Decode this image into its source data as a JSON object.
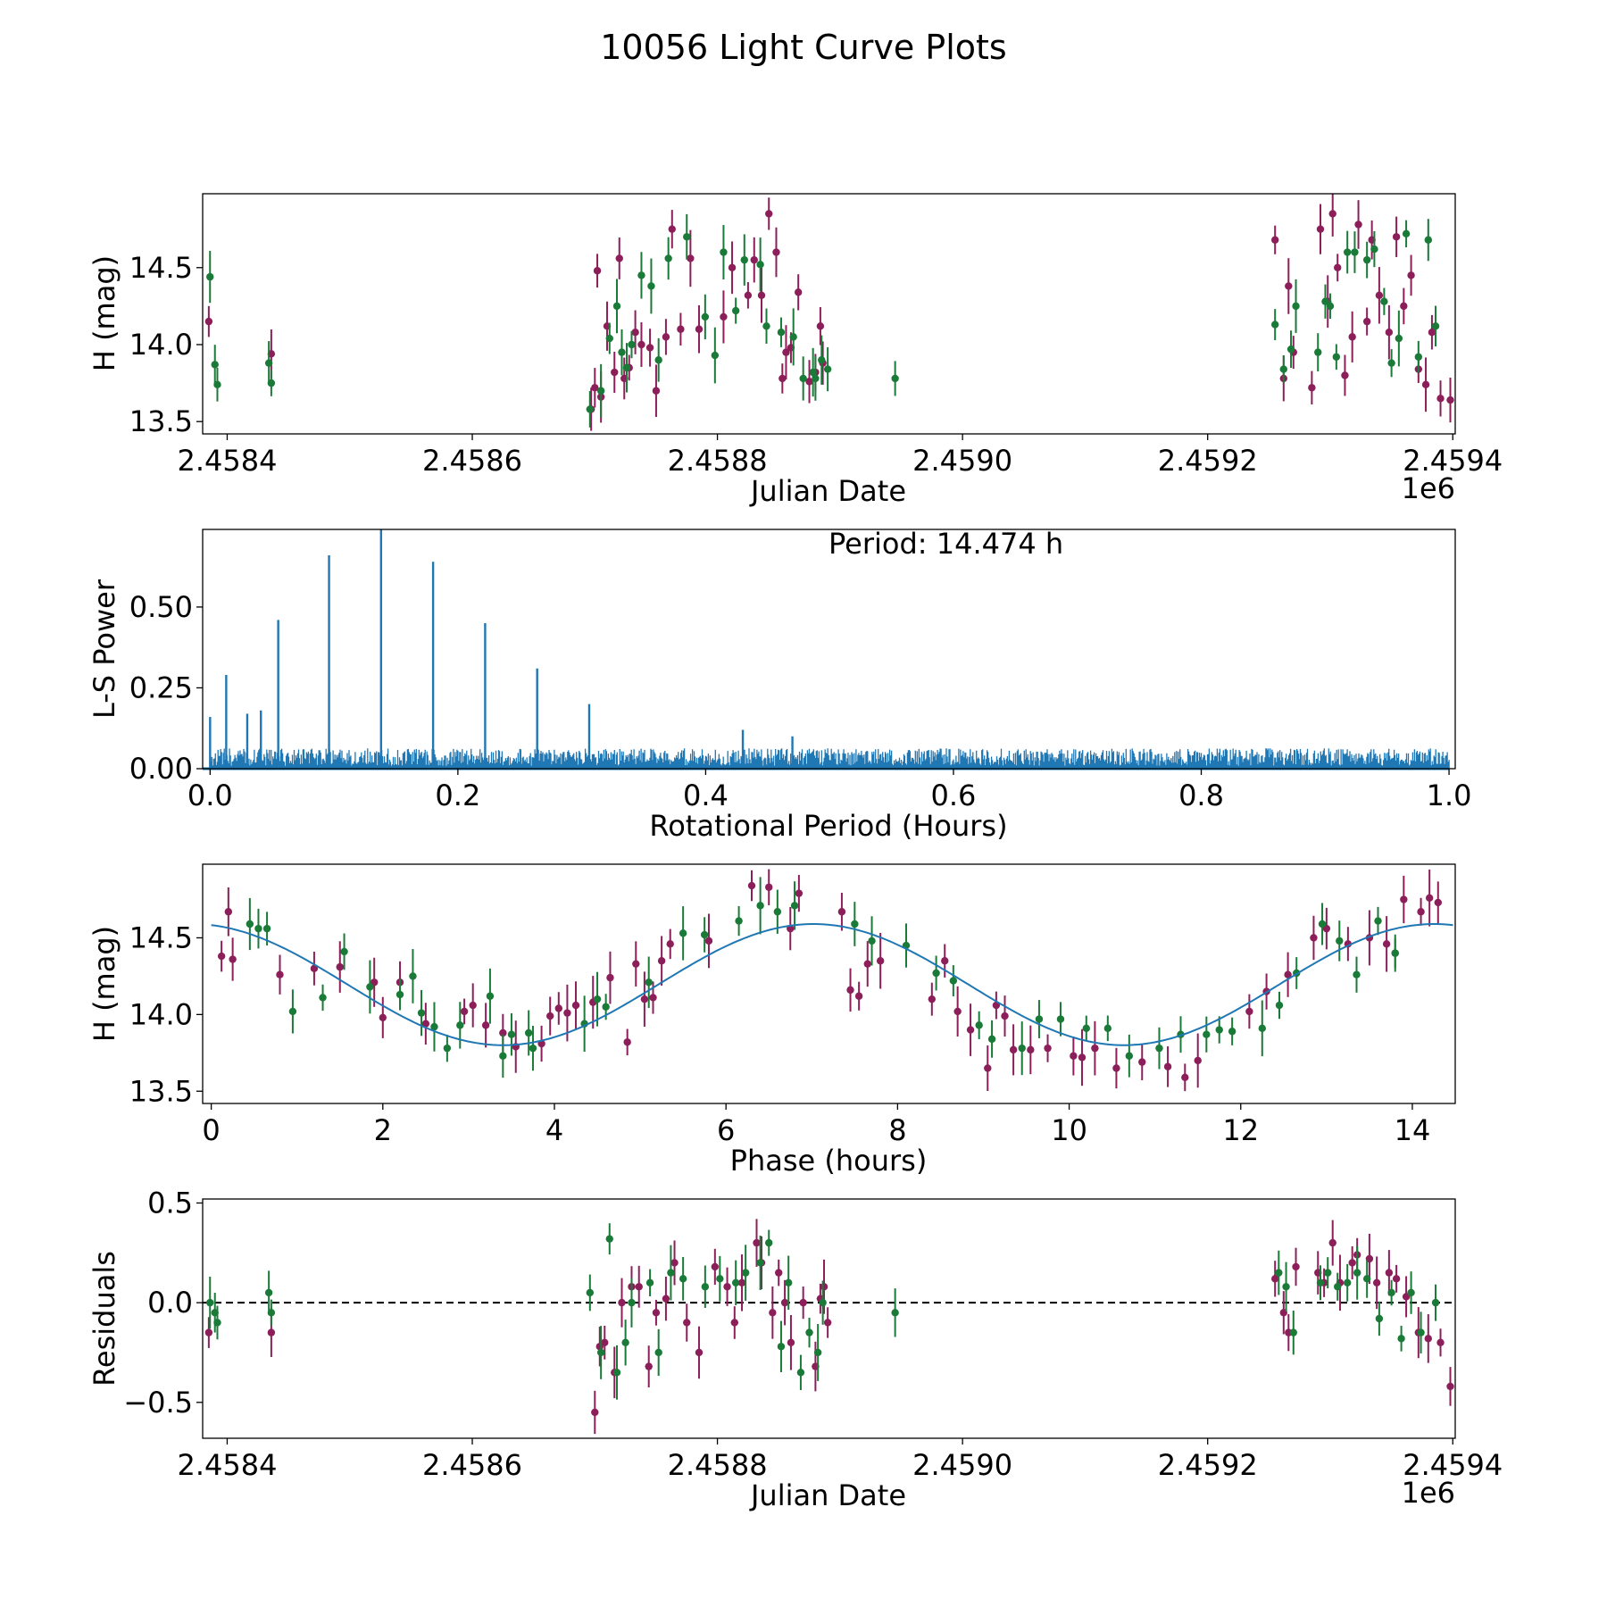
{
  "figure": {
    "title": "10056 Light Curve Plots",
    "colors": {
      "series_a": "#8c1f5a",
      "series_b": "#1a7a37",
      "line": "#1f77b4",
      "zero": "#000000"
    }
  },
  "chart_data": [
    {
      "type": "scatter",
      "title": "",
      "xlabel": "Julian Date",
      "ylabel": "H (mag)",
      "xlim": [
        2458380,
        2459402
      ],
      "ylim": [
        13.42,
        14.98
      ],
      "x_ticks": [
        2458400,
        2458600,
        2458800,
        2459000,
        2459200,
        2459400
      ],
      "x_tick_labels": [
        "2.4584",
        "2.4586",
        "2.4588",
        "2.4590",
        "2.4592",
        "2.4594"
      ],
      "x_offset_label": "1e6",
      "y_ticks": [
        13.5,
        14.0,
        14.5
      ],
      "y_tick_labels": [
        "13.5",
        "14.0",
        "14.5"
      ],
      "series": [
        {
          "name": "magenta",
          "x": [
            2458385,
            2458436,
            2458697,
            2458700,
            2458702,
            2458705,
            2458710,
            2458716,
            2458720,
            2458724,
            2458728,
            2458733,
            2458738,
            2458745,
            2458750,
            2458758,
            2458763,
            2458770,
            2458778,
            2458785,
            2458805,
            2458812,
            2458825,
            2458830,
            2458836,
            2458842,
            2458848,
            2458853,
            2458856,
            2458860,
            2458866,
            2458875,
            2458880,
            2458884,
            2458886,
            2459255,
            2459262,
            2459266,
            2459270,
            2459285,
            2459292,
            2459298,
            2459302,
            2459306,
            2459312,
            2459318,
            2459323,
            2459330,
            2459334,
            2459340,
            2459348,
            2459354,
            2459360,
            2459366,
            2459372,
            2459378,
            2459383,
            2459390,
            2459398
          ],
          "y": [
            14.15,
            13.94,
            13.58,
            13.72,
            14.48,
            13.66,
            14.12,
            13.82,
            14.56,
            13.78,
            13.85,
            14.08,
            14.0,
            13.98,
            13.7,
            14.05,
            14.75,
            14.1,
            14.56,
            14.1,
            14.18,
            14.5,
            14.32,
            14.55,
            14.32,
            14.85,
            14.6,
            13.78,
            13.95,
            13.98,
            14.34,
            13.76,
            13.82,
            14.12,
            13.88,
            14.68,
            13.78,
            14.38,
            13.95,
            13.72,
            14.75,
            14.28,
            14.85,
            14.5,
            13.8,
            14.05,
            14.78,
            14.15,
            14.68,
            14.32,
            14.08,
            14.7,
            14.25,
            14.45,
            13.84,
            13.74,
            14.08,
            13.65,
            13.64
          ]
        },
        {
          "name": "green",
          "x": [
            2458386,
            2458390,
            2458392,
            2458434,
            2458436,
            2458696,
            2458705,
            2458712,
            2458718,
            2458722,
            2458726,
            2458730,
            2458738,
            2458746,
            2458752,
            2458760,
            2458775,
            2458790,
            2458798,
            2458805,
            2458815,
            2458822,
            2458835,
            2458840,
            2458852,
            2458862,
            2458870,
            2458878,
            2458880,
            2458885,
            2458890,
            2458945,
            2459255,
            2459262,
            2459268,
            2459272,
            2459290,
            2459296,
            2459300,
            2459305,
            2459314,
            2459320,
            2459330,
            2459336,
            2459344,
            2459350,
            2459356,
            2459362,
            2459372,
            2459380,
            2459386
          ],
          "y": [
            14.44,
            13.87,
            13.74,
            13.88,
            13.75,
            13.58,
            13.7,
            14.04,
            14.25,
            13.95,
            13.85,
            14.0,
            14.45,
            14.38,
            13.9,
            14.56,
            14.7,
            14.18,
            13.93,
            14.6,
            14.22,
            14.55,
            14.52,
            14.12,
            14.08,
            14.05,
            13.78,
            13.82,
            13.78,
            13.9,
            13.84,
            13.78,
            14.13,
            13.84,
            13.97,
            14.25,
            13.95,
            14.28,
            14.25,
            13.92,
            14.6,
            14.6,
            14.55,
            14.62,
            14.28,
            13.88,
            14.04,
            14.72,
            13.92,
            14.68,
            14.12
          ]
        }
      ]
    },
    {
      "type": "line",
      "title": "",
      "xlabel": "Rotational Period (Hours)",
      "ylabel": "L-S Power",
      "xlim": [
        -0.006,
        1.005
      ],
      "ylim": [
        0,
        0.74
      ],
      "x_ticks": [
        0.0,
        0.2,
        0.4,
        0.6,
        0.8,
        1.0
      ],
      "x_tick_labels": [
        "0.0",
        "0.2",
        "0.4",
        "0.6",
        "0.8",
        "1.0"
      ],
      "y_ticks": [
        0.0,
        0.25,
        0.5
      ],
      "y_tick_labels": [
        "0.00",
        "0.25",
        "0.50"
      ],
      "annotation": "Period: 14.474 h",
      "peaks": {
        "x": [
          0.0,
          0.013,
          0.03,
          0.041,
          0.055,
          0.096,
          0.138,
          0.18,
          0.222,
          0.264,
          0.306,
          0.43,
          0.47
        ],
        "y": [
          0.16,
          0.29,
          0.17,
          0.18,
          0.46,
          0.66,
          0.74,
          0.64,
          0.45,
          0.31,
          0.2,
          0.12,
          0.1
        ]
      },
      "noise_level": 0.06
    },
    {
      "type": "scatter",
      "title": "",
      "xlabel": "Phase (hours)",
      "ylabel": "H (mag)",
      "xlim": [
        -0.1,
        14.5
      ],
      "ylim": [
        13.42,
        14.98
      ],
      "x_ticks": [
        0,
        2,
        4,
        6,
        8,
        10,
        12,
        14
      ],
      "x_tick_labels": [
        "0",
        "2",
        "4",
        "6",
        "8",
        "10",
        "12",
        "14"
      ],
      "y_ticks": [
        13.5,
        14.0,
        14.5
      ],
      "y_tick_labels": [
        "13.5",
        "14.0",
        "14.5"
      ],
      "model": {
        "name": "sinusoid fit",
        "mean": 14.195,
        "amplitude": 0.395,
        "period_hours": 7.237,
        "min_phase": 3.4
      },
      "series": [
        {
          "name": "magenta",
          "x": [
            0.12,
            0.2,
            0.25,
            0.8,
            1.2,
            1.5,
            1.9,
            2.0,
            2.2,
            2.5,
            2.95,
            3.05,
            3.2,
            3.4,
            3.55,
            3.85,
            3.95,
            4.05,
            4.15,
            4.25,
            4.45,
            4.65,
            4.85,
            4.95,
            5.05,
            5.15,
            5.25,
            5.35,
            5.8,
            6.3,
            6.5,
            6.75,
            6.85,
            7.35,
            7.45,
            7.55,
            7.65,
            7.8,
            8.4,
            8.55,
            8.7,
            8.85,
            9.05,
            9.15,
            9.25,
            9.35,
            9.55,
            9.75,
            10.05,
            10.15,
            10.3,
            10.55,
            10.85,
            11.15,
            11.35,
            11.5,
            12.1,
            12.3,
            12.55,
            12.85,
            13.0,
            13.25,
            13.5,
            13.7,
            13.8,
            13.9,
            14.1,
            14.2,
            14.3
          ],
          "y": [
            14.38,
            14.67,
            14.36,
            14.26,
            14.3,
            14.31,
            14.21,
            13.98,
            14.21,
            13.94,
            14.02,
            14.06,
            13.93,
            13.88,
            13.79,
            13.81,
            13.99,
            14.04,
            14.01,
            14.06,
            14.08,
            14.24,
            13.82,
            14.33,
            14.1,
            14.11,
            14.35,
            14.46,
            14.48,
            14.84,
            14.83,
            14.56,
            14.79,
            14.67,
            14.16,
            14.12,
            14.33,
            14.35,
            14.1,
            14.35,
            14.02,
            13.9,
            13.65,
            14.06,
            13.99,
            13.77,
            13.77,
            13.78,
            13.73,
            13.72,
            13.78,
            13.65,
            13.69,
            13.66,
            13.59,
            13.7,
            14.02,
            14.15,
            14.26,
            14.5,
            14.56,
            14.46,
            14.5,
            14.46,
            14.4,
            14.75,
            14.67,
            14.76,
            14.73
          ]
        },
        {
          "name": "green",
          "x": [
            0.45,
            0.55,
            0.65,
            0.95,
            1.3,
            1.55,
            1.85,
            2.2,
            2.35,
            2.45,
            2.6,
            2.75,
            2.9,
            3.25,
            3.4,
            3.5,
            3.7,
            3.75,
            4.35,
            4.5,
            4.6,
            5.1,
            5.5,
            5.75,
            6.15,
            6.4,
            6.6,
            6.8,
            7.5,
            7.7,
            8.1,
            8.45,
            8.65,
            8.95,
            9.1,
            9.45,
            9.65,
            9.9,
            10.2,
            10.45,
            10.7,
            11.05,
            11.3,
            11.6,
            11.75,
            11.9,
            12.25,
            12.45,
            12.65,
            12.95,
            13.15,
            13.35,
            13.6,
            13.8
          ],
          "y": [
            14.59,
            14.56,
            14.56,
            14.02,
            14.11,
            14.41,
            14.18,
            14.13,
            14.25,
            14.01,
            13.92,
            13.78,
            13.93,
            14.12,
            13.73,
            13.87,
            13.88,
            13.78,
            13.94,
            14.1,
            14.05,
            14.21,
            14.53,
            14.52,
            14.61,
            14.71,
            14.67,
            14.71,
            14.59,
            14.48,
            14.45,
            14.27,
            14.22,
            13.93,
            13.84,
            13.78,
            13.97,
            13.97,
            13.91,
            13.91,
            13.73,
            13.78,
            13.87,
            13.87,
            13.9,
            13.89,
            13.91,
            14.06,
            14.27,
            14.59,
            14.48,
            14.26,
            14.61,
            14.4
          ]
        }
      ]
    },
    {
      "type": "scatter",
      "title": "",
      "xlabel": "Julian Date",
      "ylabel": "Residuals",
      "xlim": [
        2458380,
        2459402
      ],
      "ylim": [
        -0.68,
        0.52
      ],
      "x_ticks": [
        2458400,
        2458600,
        2458800,
        2459000,
        2459200,
        2459400
      ],
      "x_tick_labels": [
        "2.4584",
        "2.4586",
        "2.4588",
        "2.4590",
        "2.4592",
        "2.4594"
      ],
      "x_offset_label": "1e6",
      "y_ticks": [
        -0.5,
        0.0,
        0.5
      ],
      "y_tick_labels": [
        "−0.5",
        "0.0",
        "0.5"
      ],
      "reference_line": 0.0,
      "series": [
        {
          "name": "magenta",
          "x": [
            2458385,
            2458436,
            2458700,
            2458704,
            2458708,
            2458716,
            2458722,
            2458730,
            2458736,
            2458744,
            2458750,
            2458758,
            2458765,
            2458775,
            2458785,
            2458798,
            2458808,
            2458814,
            2458820,
            2458832,
            2458836,
            2458845,
            2458850,
            2458855,
            2458860,
            2458870,
            2458880,
            2458884,
            2458887,
            2458890,
            2459255,
            2459262,
            2459266,
            2459272,
            2459290,
            2459295,
            2459302,
            2459308,
            2459318,
            2459322,
            2459332,
            2459338,
            2459348,
            2459354,
            2459362,
            2459372,
            2459380,
            2459390,
            2459398
          ],
          "y": [
            -0.15,
            -0.15,
            -0.55,
            -0.22,
            -0.2,
            -0.35,
            0.0,
            0.08,
            0.08,
            -0.32,
            -0.05,
            0.02,
            0.2,
            -0.1,
            -0.25,
            0.18,
            0.08,
            -0.1,
            0.1,
            0.3,
            0.2,
            -0.05,
            0.15,
            0.0,
            -0.2,
            0.0,
            -0.32,
            0.02,
            0.08,
            -0.1,
            0.12,
            -0.05,
            -0.15,
            0.18,
            0.15,
            0.1,
            0.3,
            0.1,
            0.2,
            0.24,
            0.22,
            0.1,
            0.15,
            0.12,
            0.03,
            -0.15,
            -0.18,
            -0.2,
            -0.42
          ]
        },
        {
          "name": "green",
          "x": [
            2458386,
            2458390,
            2458392,
            2458434,
            2458436,
            2458696,
            2458705,
            2458712,
            2458718,
            2458725,
            2458730,
            2458745,
            2458752,
            2458762,
            2458772,
            2458790,
            2458802,
            2458815,
            2458823,
            2458835,
            2458842,
            2458852,
            2458858,
            2458868,
            2458875,
            2458882,
            2458886,
            2458945,
            2459258,
            2459264,
            2459270,
            2459292,
            2459298,
            2459306,
            2459314,
            2459322,
            2459330,
            2459340,
            2459350,
            2459358,
            2459366,
            2459374,
            2459386
          ],
          "y": [
            0.0,
            -0.05,
            -0.1,
            0.05,
            -0.05,
            0.05,
            -0.25,
            0.32,
            -0.35,
            -0.2,
            0.0,
            0.1,
            -0.25,
            0.15,
            0.12,
            0.08,
            0.12,
            0.1,
            0.15,
            0.2,
            0.3,
            -0.22,
            0.1,
            -0.35,
            -0.15,
            -0.25,
            0.0,
            -0.05,
            0.15,
            0.08,
            -0.15,
            0.1,
            0.15,
            0.08,
            0.1,
            0.15,
            0.12,
            -0.08,
            0.05,
            -0.18,
            0.05,
            -0.15,
            0.0
          ]
        }
      ]
    }
  ]
}
